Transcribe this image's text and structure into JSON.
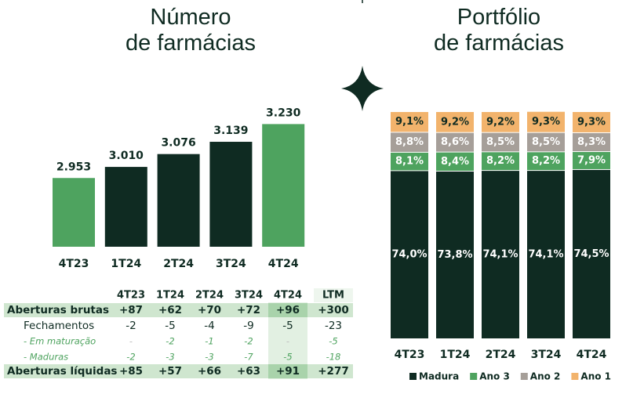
{
  "chart_data": [
    {
      "type": "bar",
      "title": "Número\nde farmácias",
      "categories": [
        "4T23",
        "1T24",
        "2T24",
        "3T24",
        "4T24"
      ],
      "values": [
        2953,
        3010,
        3076,
        3139,
        3230
      ],
      "value_labels": [
        "2.953",
        "3.010",
        "3.076",
        "3.139",
        "3.230"
      ],
      "colors": [
        "#4ea35f",
        "#0f2b22",
        "#0f2b22",
        "#0f2b22",
        "#4ea35f"
      ],
      "ylim": [
        2600,
        3300
      ]
    },
    {
      "type": "bar",
      "stacked": true,
      "title": "Portfólio\nde farmácias",
      "categories": [
        "4T23",
        "1T24",
        "2T24",
        "3T24",
        "4T24"
      ],
      "series": [
        {
          "name": "Madura",
          "color": "#0f2b22",
          "label_color": "#ffffff",
          "values": [
            74.0,
            73.8,
            74.1,
            74.1,
            74.5
          ],
          "value_labels": [
            "74,0%",
            "73,8%",
            "74,1%",
            "74,1%",
            "74,5%"
          ]
        },
        {
          "name": "Ano 3",
          "color": "#4ea35f",
          "label_color": "#ffffff",
          "values": [
            8.1,
            8.4,
            8.2,
            8.2,
            7.9
          ],
          "value_labels": [
            "8,1%",
            "8,4%",
            "8,2%",
            "8,2%",
            "7,9%"
          ]
        },
        {
          "name": "Ano 2",
          "color": "#a69f99",
          "label_color": "#ffffff",
          "values": [
            8.8,
            8.6,
            8.5,
            8.5,
            8.3
          ],
          "value_labels": [
            "8,8%",
            "8,6%",
            "8,5%",
            "8,5%",
            "8,3%"
          ]
        },
        {
          "name": "Ano 1",
          "color": "#f2b36c",
          "label_color": "#0f2b22",
          "values": [
            9.1,
            9.2,
            9.2,
            9.3,
            9.3
          ],
          "value_labels": [
            "9,1%",
            "9,2%",
            "9,2%",
            "9,3%",
            "9,3%"
          ]
        }
      ],
      "ylim": [
        0,
        100
      ],
      "legend": "bottom"
    }
  ],
  "table": {
    "columns": [
      "4T23",
      "1T24",
      "2T24",
      "3T24",
      "4T24",
      "LTM"
    ],
    "rows": [
      {
        "label": "Aberturas brutas",
        "cells": [
          "+87",
          "+62",
          "+70",
          "+72",
          "+96",
          "+300"
        ]
      },
      {
        "label": "Fechamentos",
        "cells": [
          "-2",
          "-5",
          "-4",
          "-9",
          "-5",
          "-23"
        ]
      },
      {
        "label": "- Em maturação",
        "cells": [
          "-",
          "-2",
          "-1",
          "-2",
          "-",
          "-5"
        ]
      },
      {
        "label": "- Maduras",
        "cells": [
          "-2",
          "-3",
          "-3",
          "-7",
          "-5",
          "-18"
        ]
      },
      {
        "label": "Aberturas líquidas",
        "cells": [
          "+85",
          "+57",
          "+66",
          "+63",
          "+91",
          "+277"
        ]
      }
    ]
  }
}
